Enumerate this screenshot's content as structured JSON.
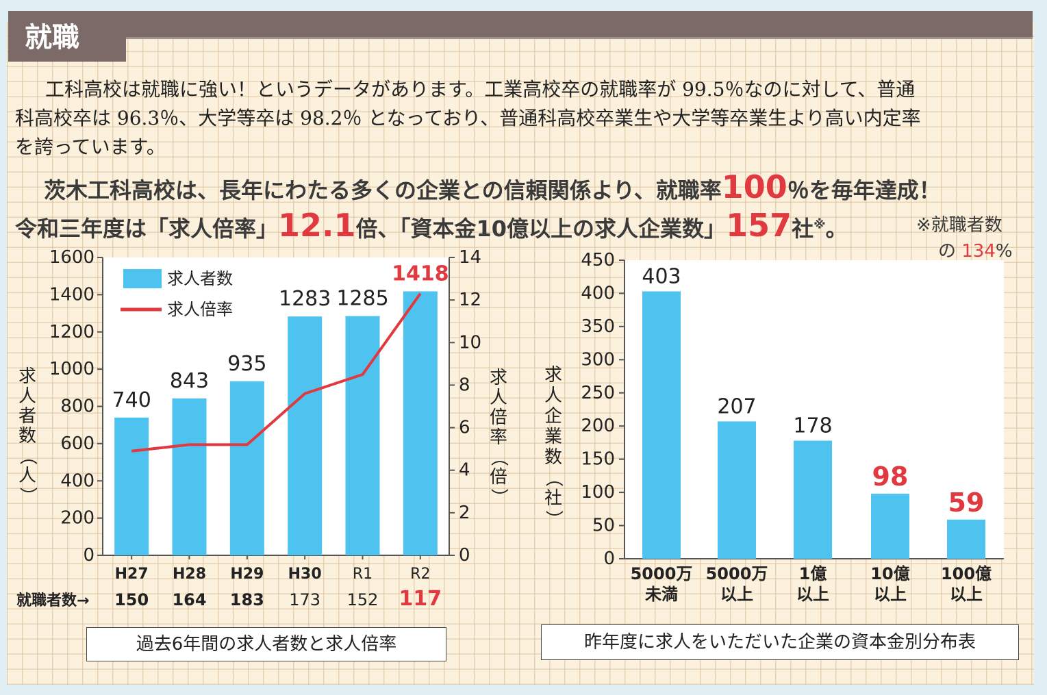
{
  "header": {
    "title": "就職"
  },
  "intro": {
    "line1": "工科高校は就職に強い！というデータがあります。工業高校卒の就職率が 99.5％なのに対して、普通",
    "line2": "科高校卒は 96.3％、大学等卒は 98.2％ となっており、普通科高校卒業生や大学等卒業生より高い内定率",
    "line3": "を誇っています。"
  },
  "headline1": {
    "pre": "茨木工科高校は、長年にわたる多くの企業との信頼関係より、就職率",
    "value": "100",
    "post": "％を毎年達成！"
  },
  "headline2": {
    "pre": "令和三年度は「求人倍率」",
    "value1": "12.1",
    "mid": "倍、「資本金10億以上の求人企業数」",
    "value2": "157",
    "post": "社",
    "mark": "※",
    "end": "。"
  },
  "note": {
    "line1": "※就職者数",
    "line2_pre": "の ",
    "line2_value": "134",
    "line2_post": "%"
  },
  "chart_data": [
    {
      "type": "bar",
      "title": "過去6年間の求人者数と求人倍率",
      "categories": [
        "H27",
        "H28",
        "H29",
        "H30",
        "R1",
        "R2"
      ],
      "series": [
        {
          "name": "求人者数",
          "type": "bar",
          "values": [
            740,
            843,
            935,
            1283,
            1285,
            1418
          ],
          "color": "#4fc3ef"
        },
        {
          "name": "求人倍率",
          "type": "line",
          "axis": "right",
          "values": [
            4.9,
            5.2,
            5.2,
            7.6,
            8.5,
            12.3
          ],
          "color": "#e03a40"
        }
      ],
      "ylabel": "求人者数（人）",
      "y2label": "求人倍率（倍）",
      "ylim": [
        0,
        1600
      ],
      "yticks": [
        "0",
        "200",
        "400",
        "600",
        "800",
        "1000",
        "1200",
        "1400",
        "1600"
      ],
      "y2lim": [
        0,
        14
      ],
      "y2ticks": [
        "0",
        "2",
        "4",
        "6",
        "8",
        "10",
        "12",
        "14"
      ],
      "data_labels": [
        "740",
        "843",
        "935",
        "1283",
        "1285",
        "1418"
      ],
      "highlight_color": "#e03a40",
      "extra_row": {
        "label": "就職者数→",
        "values": [
          "150",
          "164",
          "183",
          "173",
          "152",
          "117"
        ]
      },
      "legend": "top-left"
    },
    {
      "type": "bar",
      "title": "昨年度に求人をいただいた企業の資本金別分布表",
      "categories": [
        [
          "5000万",
          "未満"
        ],
        [
          "5000万",
          "以上"
        ],
        [
          "1億",
          "以上"
        ],
        [
          "10億",
          "以上"
        ],
        [
          "100億",
          "以上"
        ]
      ],
      "values": [
        403,
        207,
        178,
        98,
        59
      ],
      "data_labels": [
        "403",
        "207",
        "178",
        "98",
        "59"
      ],
      "color": "#4fc3ef",
      "highlight_color": "#e03a40",
      "ylabel": "求人企業数（社）",
      "ylim": [
        0,
        450
      ],
      "yticks": [
        "0",
        "50",
        "100",
        "150",
        "200",
        "250",
        "300",
        "350",
        "400",
        "450"
      ]
    }
  ]
}
